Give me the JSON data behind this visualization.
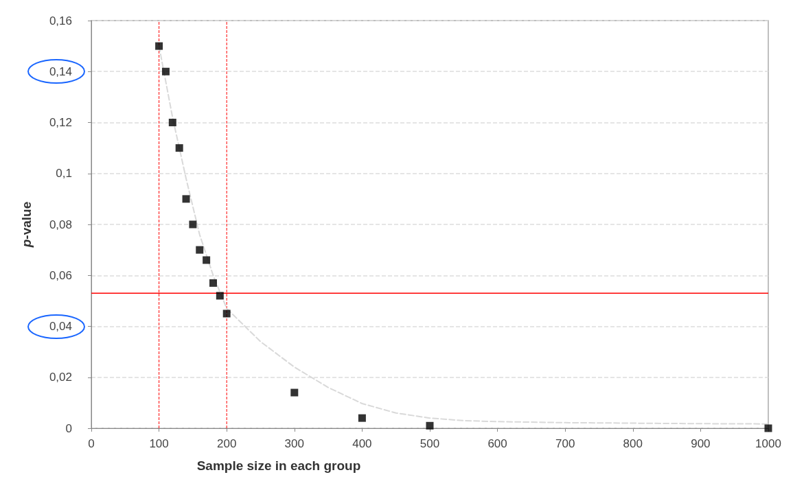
{
  "chart_data": {
    "type": "scatter",
    "xlabel": "Sample size in each group",
    "ylabel": "p-value",
    "xlim": [
      0,
      1000
    ],
    "xticks": [
      0,
      100,
      200,
      300,
      400,
      500,
      600,
      700,
      800,
      900,
      1000
    ],
    "ylim": [
      0,
      0.16
    ],
    "yticks": [
      {
        "value": 0,
        "label": "0"
      },
      {
        "value": 0.02,
        "label": "0,02"
      },
      {
        "value": 0.04,
        "label": "0,04"
      },
      {
        "value": 0.06,
        "label": "0,06"
      },
      {
        "value": 0.08,
        "label": "0,08"
      },
      {
        "value": 0.1,
        "label": "0,1"
      },
      {
        "value": 0.12,
        "label": "0,12"
      },
      {
        "value": 0.14,
        "label": "0,14"
      },
      {
        "value": 0.16,
        "label": "0,16"
      }
    ],
    "grid": "y",
    "series": [
      {
        "type": "line",
        "color": "#d9d9d9",
        "marker": "none",
        "line_style": "dashed",
        "x": [
          100,
          120,
          140,
          160,
          180,
          200,
          250,
          300,
          350,
          400,
          450,
          500,
          550,
          600,
          700,
          800,
          900,
          1000
        ],
        "values": [
          0.15,
          0.122,
          0.098,
          0.076,
          0.06,
          0.047,
          0.034,
          0.024,
          0.016,
          0.0097,
          0.006,
          0.004,
          0.003,
          0.0026,
          0.0022,
          0.002,
          0.0018,
          0.0017
        ]
      },
      {
        "color": "#000000",
        "marker": "square",
        "x": [
          100,
          110,
          120,
          130,
          140,
          150,
          160,
          170,
          180,
          190,
          200,
          300,
          400,
          500,
          1000
        ],
        "values": [
          0.15,
          0.14,
          0.12,
          0.11,
          0.09,
          0.08,
          0.07,
          0.066,
          0.057,
          0.052,
          0.045,
          0.014,
          0.004,
          0.001,
          0
        ]
      }
    ],
    "ref_lines": [
      {
        "axis": "y",
        "value": 0.053,
        "color": "#ff0000",
        "line_style": "solid"
      },
      {
        "axis": "x",
        "value": 100,
        "color": "#ff0000",
        "line_style": "dashed"
      },
      {
        "axis": "x",
        "value": 200,
        "color": "#ff0000",
        "line_style": "dashed"
      }
    ]
  }
}
